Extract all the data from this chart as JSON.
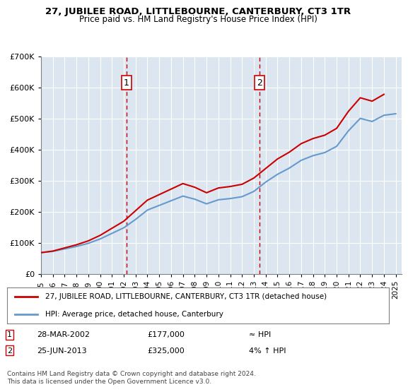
{
  "title": "27, JUBILEE ROAD, LITTLEBOURNE, CANTERBURY, CT3 1TR",
  "subtitle": "Price paid vs. HM Land Registry's House Price Index (HPI)",
  "bg_color": "#dce6f0",
  "plot_bg_color": "#dce6f0",
  "transaction1": {
    "date": "28-MAR-2002",
    "price": 177000,
    "label": "1",
    "year": 2002.23
  },
  "transaction2": {
    "date": "25-JUN-2013",
    "price": 325000,
    "label": "2",
    "year": 2013.48
  },
  "legend_line1": "27, JUBILEE ROAD, LITTLEBOURNE, CANTERBURY, CT3 1TR (detached house)",
  "legend_line2": "HPI: Average price, detached house, Canterbury",
  "footnote1": "Contains HM Land Registry data © Crown copyright and database right 2024.",
  "footnote2": "This data is licensed under the Open Government Licence v3.0.",
  "red_color": "#cc0000",
  "blue_color": "#6699cc",
  "ylim": [
    0,
    700000
  ],
  "xlim_start": 1995.0,
  "xlim_end": 2025.5,
  "hpi_years": [
    1995,
    1996,
    1997,
    1998,
    1999,
    2000,
    2001,
    2002,
    2003,
    2004,
    2005,
    2006,
    2007,
    2008,
    2009,
    2010,
    2011,
    2012,
    2013,
    2014,
    2015,
    2016,
    2017,
    2018,
    2019,
    2020,
    2021,
    2022,
    2023,
    2024,
    2025
  ],
  "hpi_values": [
    68000,
    72000,
    80000,
    88000,
    98000,
    112000,
    130000,
    148000,
    175000,
    205000,
    220000,
    235000,
    250000,
    240000,
    225000,
    238000,
    242000,
    248000,
    265000,
    295000,
    320000,
    340000,
    365000,
    380000,
    390000,
    410000,
    460000,
    500000,
    490000,
    510000,
    515000
  ],
  "price_paid_years": [
    1995.5,
    2002.23,
    2013.48,
    2024.5
  ],
  "price_paid_values": [
    68000,
    177000,
    325000,
    580000
  ],
  "yticks": [
    0,
    100000,
    200000,
    300000,
    400000,
    500000,
    600000,
    700000
  ],
  "ytick_labels": [
    "£0",
    "£100K",
    "£200K",
    "£300K",
    "£400K",
    "£500K",
    "£600K",
    "£700K"
  ],
  "xticks": [
    1995,
    1996,
    1997,
    1998,
    1999,
    2000,
    2001,
    2002,
    2003,
    2004,
    2005,
    2006,
    2007,
    2008,
    2009,
    2010,
    2011,
    2012,
    2013,
    2014,
    2015,
    2016,
    2017,
    2018,
    2019,
    2020,
    2021,
    2022,
    2023,
    2024,
    2025
  ]
}
